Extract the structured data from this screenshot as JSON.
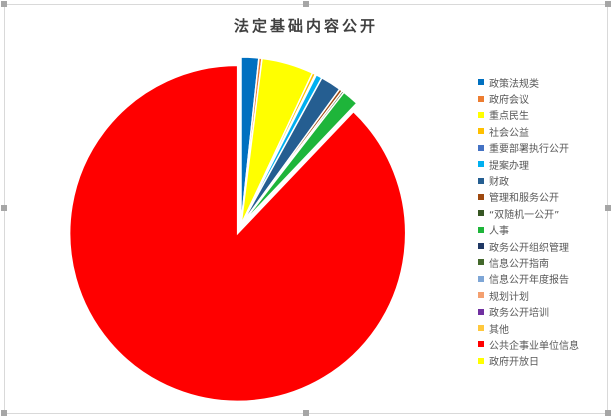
{
  "chart_data": {
    "type": "pie",
    "title": "法定基础内容公开",
    "legend_position": "right",
    "exploded": "公共企事业单位信息",
    "slices": [
      {
        "name": "政策法规类",
        "value": 1.7,
        "color": "#0070c0"
      },
      {
        "name": "政府会议",
        "value": 0.3,
        "color": "#ed7d31"
      },
      {
        "name": "重点民生",
        "value": 5.0,
        "color": "#ffff00"
      },
      {
        "name": "社会公益",
        "value": 0.3,
        "color": "#ffc000"
      },
      {
        "name": "重要部署执行公开",
        "value": 0.1,
        "color": "#4472c4"
      },
      {
        "name": "提案办理",
        "value": 0.6,
        "color": "#00b0f0"
      },
      {
        "name": "财政",
        "value": 2.0,
        "color": "#255e91"
      },
      {
        "name": "管理和服务公开",
        "value": 0.3,
        "color": "#9e480e"
      },
      {
        "name": "“双随机一公开”",
        "value": 0.2,
        "color": "#375623"
      },
      {
        "name": "人事",
        "value": 1.6,
        "color": "#1eb53a"
      },
      {
        "name": "政务公开组织管理",
        "value": 0,
        "color": "#203864"
      },
      {
        "name": "信息公开指南",
        "value": 0,
        "color": "#43682b"
      },
      {
        "name": "信息公开年度报告",
        "value": 0,
        "color": "#7ea6d6"
      },
      {
        "name": "规划计划",
        "value": 0,
        "color": "#f4a070"
      },
      {
        "name": "政务公开培训",
        "value": 0,
        "color": "#7030a0"
      },
      {
        "name": "其他",
        "value": 0,
        "color": "#ffc83d"
      },
      {
        "name": "公共企事业单位信息",
        "value": 87.9,
        "color": "#ff0000"
      },
      {
        "name": "政府开放日",
        "value": 0,
        "color": "#ffff00"
      }
    ]
  }
}
